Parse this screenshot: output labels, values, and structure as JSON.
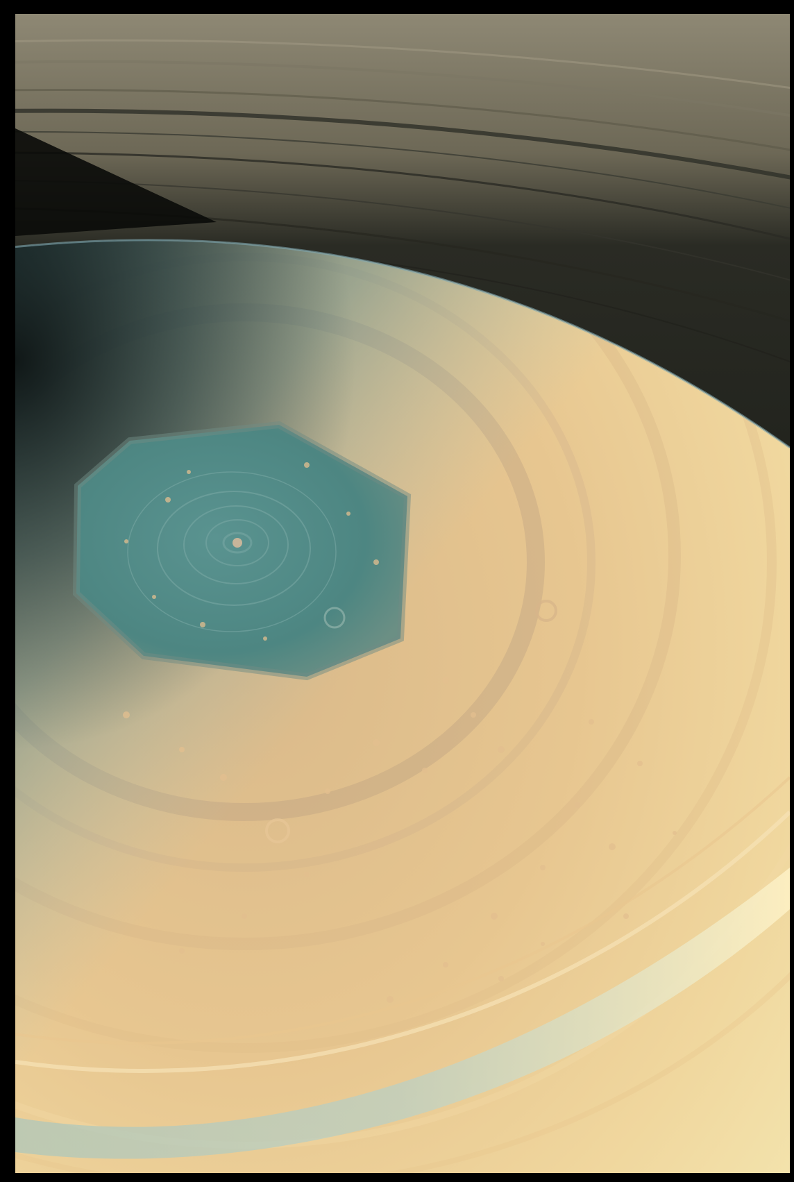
{
  "image": {
    "subject": "",
    "colors": {
      "frame": "#000000",
      "space": "#0b0c0a",
      "ring_light": "#8a8470",
      "ring_dark": "#1c1e18",
      "planet_gold": "#e8c98e",
      "planet_cream": "#f0dfa6",
      "planet_limb_blue": "#9fc2c0",
      "hexagon_teal": "#4f8a86",
      "cloud_spot": "#e3bf8f"
    }
  }
}
